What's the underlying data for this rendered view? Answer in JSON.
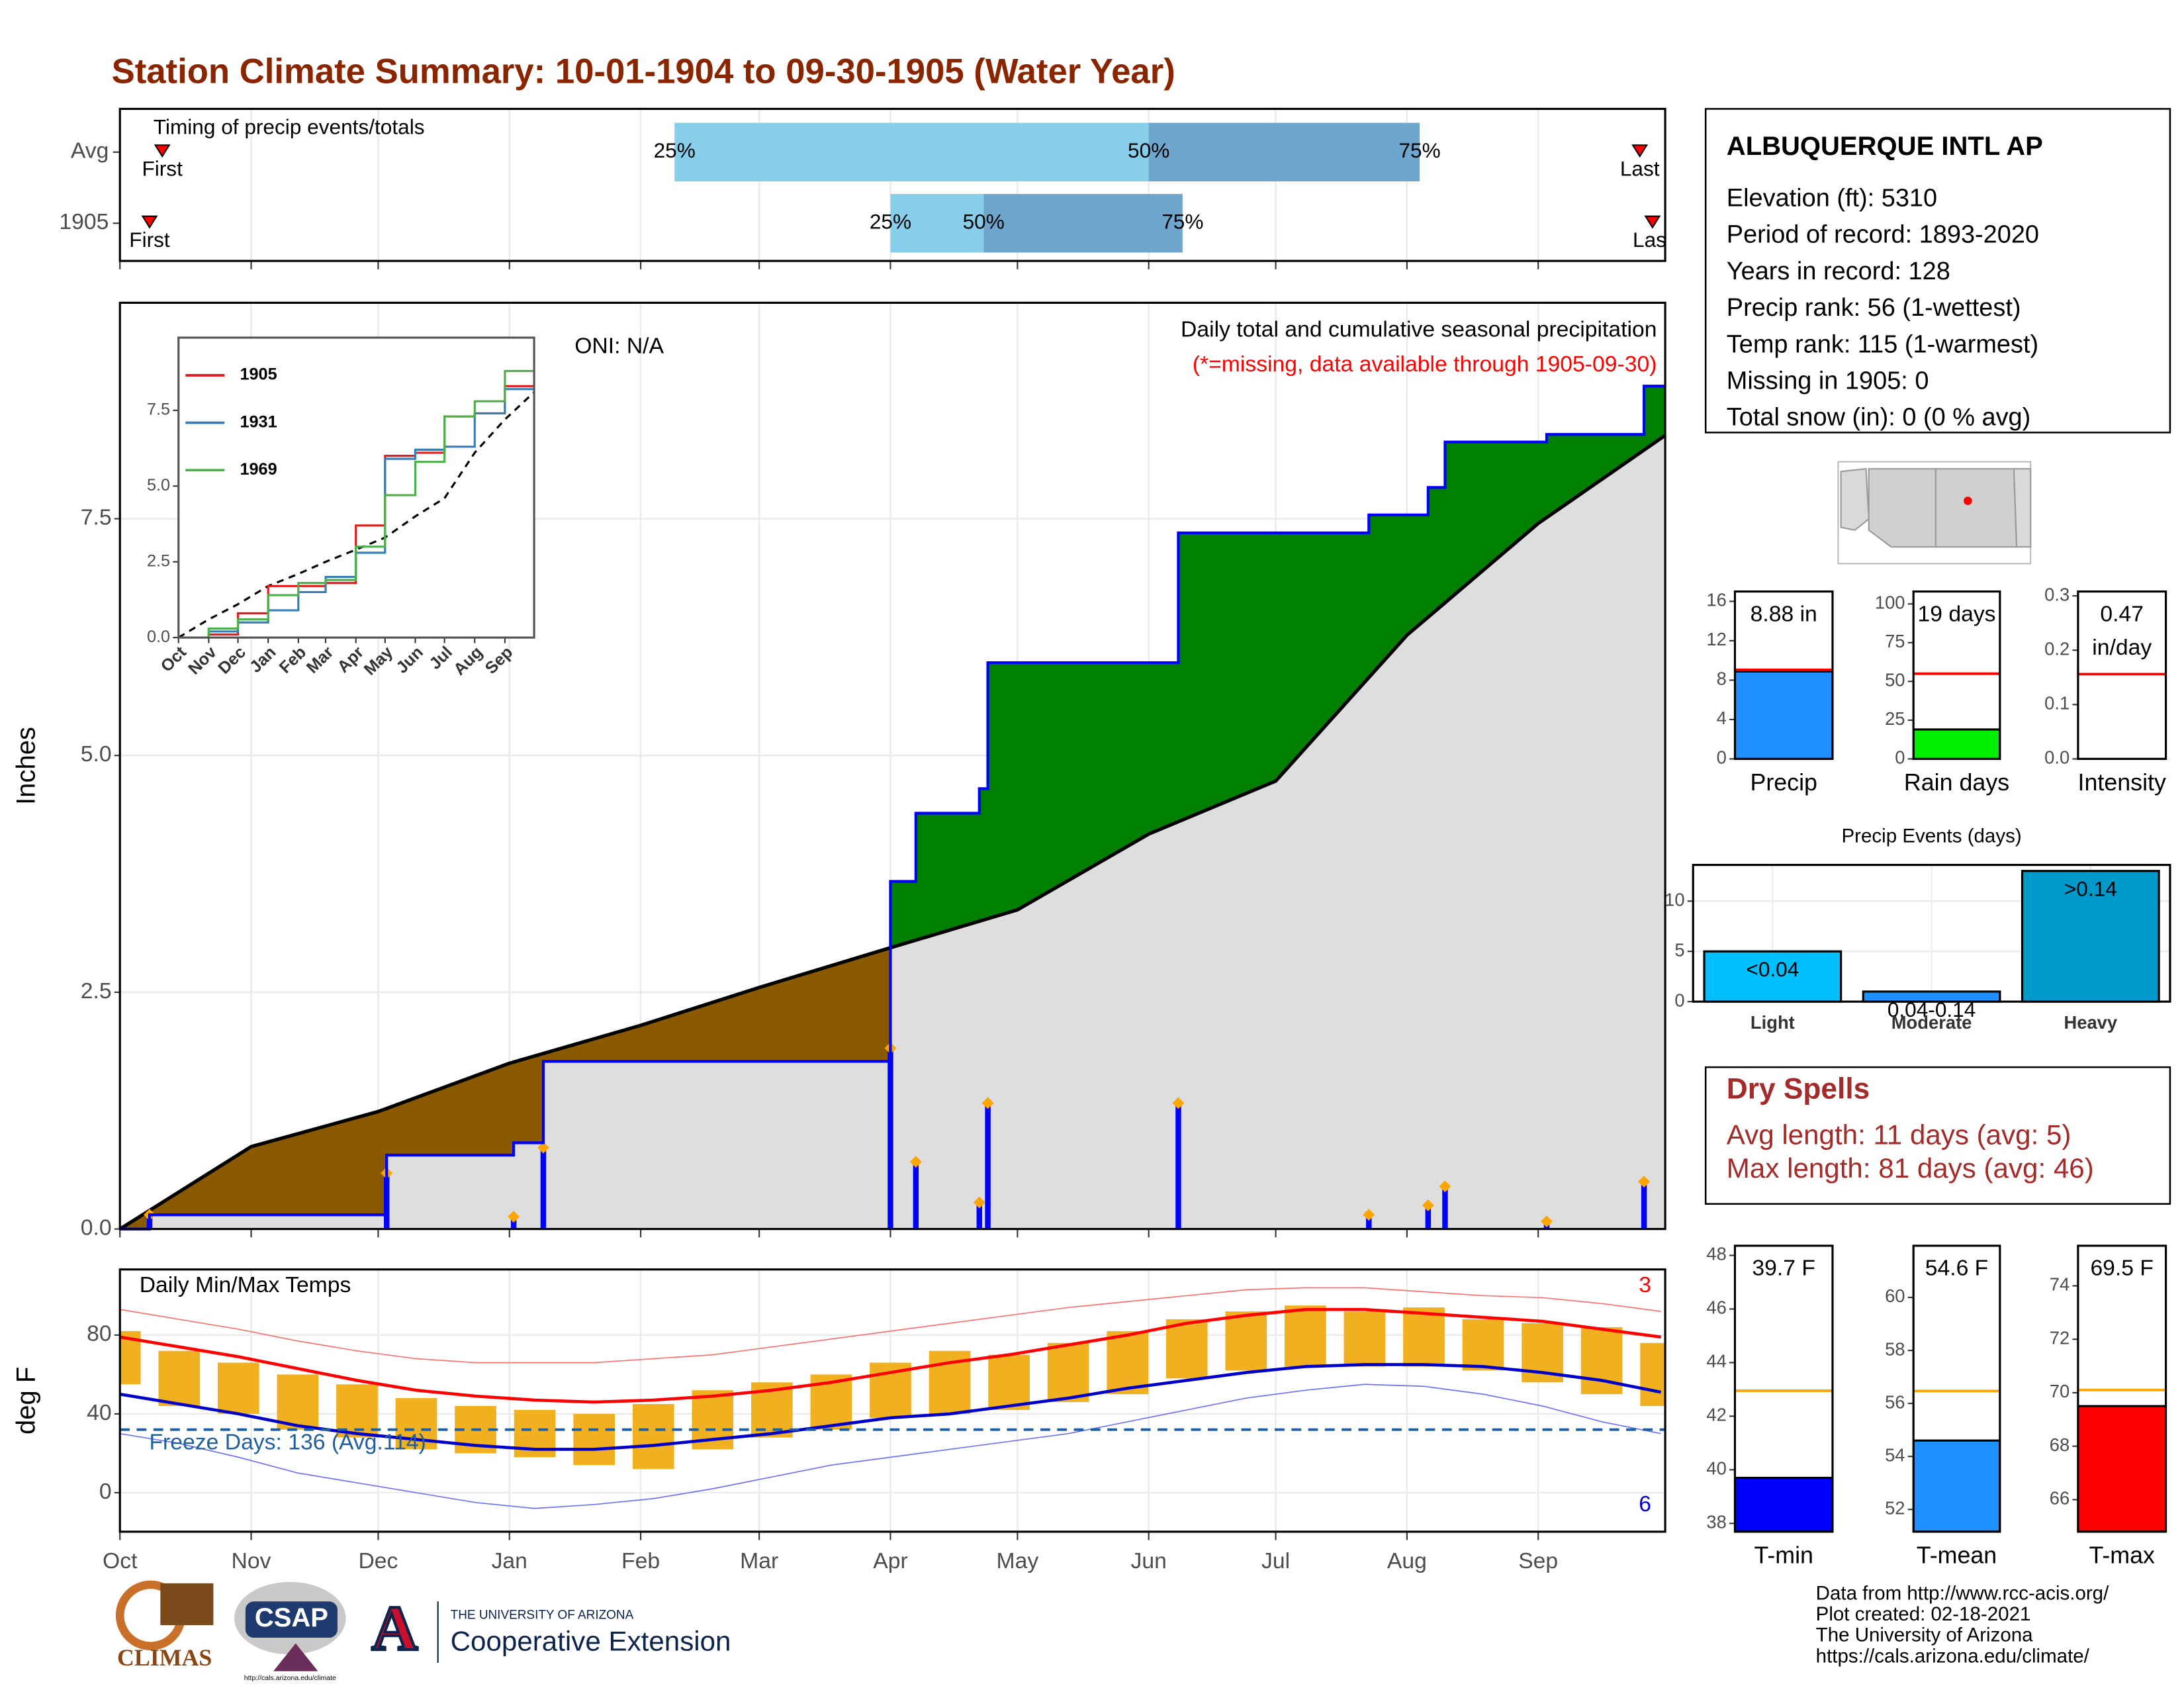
{
  "title": "Station Climate Summary: 10-01-1904 to 09-30-1905 (Water Year)",
  "station": {
    "name": "ALBUQUERQUE INTL AP",
    "lines": [
      "Elevation (ft): 5310",
      "Period of record: 1893-2020",
      "Years in record: 128",
      "Precip rank: 56 (1-wettest)",
      "Temp rank: 115 (1-warmest)",
      "Missing in 1905: 0",
      "Total snow (in): 0 (0 % avg)"
    ]
  },
  "dry_spells": {
    "title": "Dry Spells",
    "lines": [
      "Avg length: 11 days (avg: 5)",
      "Max length: 81 days (avg: 46)"
    ]
  },
  "footer": [
    "Data from http://www.rcc-acis.org/",
    "Plot created: 02-18-2021",
    "The University of Arizona",
    "https://cals.arizona.edu/climate/"
  ],
  "logos": {
    "climas": "CLIMAS",
    "csap": "CSAP",
    "csap_url": "http://cals.arizona.edu/climate",
    "ua_letter": "A",
    "ua_small": "THE UNIVERSITY OF ARIZONA",
    "ua_big": "Cooperative Extension"
  },
  "chart_data": [
    {
      "type": "timing",
      "label": "Timing of precip events/totals",
      "rows": [
        "Avg",
        "1905"
      ],
      "q25": [
        131,
        182
      ],
      "q50": [
        243,
        204
      ],
      "q75": [
        307,
        251
      ],
      "quantile_labels": [
        "25%",
        "50%",
        "75%"
      ],
      "first": [
        10,
        7
      ],
      "last": [
        359,
        362
      ],
      "first_label": "First",
      "last_label": "Last",
      "colors": [
        "#87ceeb",
        "#6ea6cd"
      ],
      "marker_color": "#ff0000"
    },
    {
      "type": "cumulative",
      "subtitle": "Daily total and cumulative seasonal precipitation",
      "note": "(*=missing, data available through 1905-09-30)",
      "oni": "ONI: N/A",
      "ylabel": "Inches",
      "ylim": [
        0,
        9.78
      ],
      "yticks": [
        {
          "value": 0,
          "label": "0.0"
        },
        2.5,
        {
          "value": 5,
          "label": "5.0"
        },
        7.5
      ],
      "cumulative": {
        "x": [
          0,
          7,
          63,
          93,
          100,
          182,
          188,
          203,
          205,
          250,
          295,
          309,
          313,
          337,
          360
        ],
        "values": [
          0,
          0.15,
          0.78,
          0.91,
          1.77,
          3.67,
          4.39,
          4.65,
          5.98,
          7.35,
          7.54,
          7.83,
          8.31,
          8.39,
          8.9
        ],
        "color": "#0000ff"
      },
      "average": {
        "x": [
          0,
          31,
          61,
          92,
          123,
          151,
          182,
          212,
          243,
          273,
          304,
          335,
          365
        ],
        "values": [
          0,
          0.87,
          1.24,
          1.75,
          2.15,
          2.55,
          2.97,
          3.37,
          4.17,
          4.73,
          6.27,
          7.45,
          8.38
        ],
        "color": "#000000"
      },
      "daily": {
        "x": [
          7,
          63,
          93,
          100,
          182,
          188,
          203,
          205,
          250,
          295,
          309,
          313,
          337,
          360
        ],
        "values": [
          0.15,
          0.59,
          0.13,
          0.86,
          1.91,
          0.71,
          0.28,
          1.33,
          1.33,
          0.15,
          0.25,
          0.45,
          0.08,
          0.5
        ],
        "color": "#0000ff",
        "marker_color": "#ffa500"
      },
      "above_color": "#008000",
      "below_color": "#8b5a00",
      "base_color": "#dedede"
    },
    {
      "type": "line",
      "ylim": [
        0,
        9.9
      ],
      "yticks": [
        {
          "value": 0,
          "label": "0.0"
        },
        2.5,
        {
          "value": 5,
          "label": "5.0"
        },
        7.5
      ],
      "x": [
        0,
        31,
        61,
        92,
        123,
        151,
        182,
        212,
        243,
        273,
        304,
        335,
        365
      ],
      "series": [
        {
          "name": "1905",
          "color": "#e41a1c",
          "values": [
            0,
            0.1,
            0.8,
            1.7,
            1.7,
            1.8,
            3.7,
            6.0,
            6.1,
            7.3,
            7.4,
            8.3,
            8.9
          ]
        },
        {
          "name": "1931",
          "color": "#377eb8",
          "values": [
            0,
            0.2,
            0.5,
            0.9,
            1.5,
            2.0,
            2.8,
            5.9,
            6.2,
            6.3,
            7.4,
            8.2,
            9.9
          ]
        },
        {
          "name": "1969",
          "color": "#4daf4a",
          "values": [
            0,
            0.3,
            0.6,
            1.4,
            1.8,
            1.9,
            3.0,
            4.7,
            5.8,
            7.3,
            7.8,
            8.8,
            9.1
          ]
        }
      ],
      "average": {
        "color": "#000000",
        "values": [
          0,
          0.6,
          1.1,
          1.7,
          2.1,
          2.5,
          2.9,
          3.3,
          4.0,
          4.6,
          6.1,
          7.2,
          8.1
        ]
      }
    },
    {
      "type": "band",
      "label": "Daily Min/Max Temps",
      "ylabel": "deg F",
      "freeze": 32,
      "freeze_label": "Freeze Days: 136 (Avg.114)",
      "record_high_count": "3",
      "record_low_count": "6",
      "xlim": [
        0,
        365
      ],
      "xticks": [
        {
          "value": 0,
          "label": "Oct"
        },
        {
          "value": 31,
          "label": "Nov"
        },
        {
          "value": 61,
          "label": "Dec"
        },
        {
          "value": 92,
          "label": "Jan"
        },
        {
          "value": 123,
          "label": "Feb"
        },
        {
          "value": 151,
          "label": "Mar"
        },
        {
          "value": 182,
          "label": "Apr"
        },
        {
          "value": 212,
          "label": "May"
        },
        {
          "value": 243,
          "label": "Jun"
        },
        {
          "value": 273,
          "label": "Jul"
        },
        {
          "value": 304,
          "label": "Aug"
        },
        {
          "value": 335,
          "label": "Sep"
        }
      ],
      "ylim": [
        -19.8,
        113.3
      ],
      "yticks": [
        0,
        40,
        80
      ],
      "x": [
        0,
        14,
        28,
        42,
        56,
        70,
        84,
        98,
        112,
        126,
        140,
        154,
        168,
        182,
        196,
        210,
        224,
        238,
        252,
        266,
        280,
        294,
        308,
        322,
        336,
        350,
        364
      ],
      "obs_max": [
        82,
        72,
        66,
        60,
        55,
        48,
        44,
        42,
        40,
        45,
        52,
        56,
        60,
        66,
        72,
        70,
        76,
        82,
        88,
        92,
        95,
        92,
        94,
        88,
        86,
        84,
        76
      ],
      "obs_min": [
        55,
        44,
        40,
        32,
        28,
        22,
        20,
        18,
        14,
        12,
        22,
        28,
        32,
        38,
        40,
        42,
        46,
        50,
        58,
        62,
        64,
        64,
        64,
        62,
        56,
        50,
        44
      ],
      "avg_max": [
        79,
        74,
        69,
        63,
        57,
        52,
        49,
        47,
        46,
        47,
        49,
        52,
        56,
        61,
        66,
        70,
        75,
        80,
        86,
        90,
        93,
        93,
        91,
        89,
        87,
        83,
        79
      ],
      "avg_min": [
        50,
        45,
        40,
        34,
        30,
        27,
        24,
        22,
        22,
        24,
        27,
        30,
        34,
        38,
        40,
        44,
        48,
        53,
        57,
        61,
        64,
        65,
        65,
        64,
        61,
        57,
        51
      ],
      "record_high": [
        93,
        88,
        83,
        77,
        72,
        68,
        66,
        66,
        66,
        68,
        70,
        74,
        78,
        82,
        86,
        90,
        94,
        97,
        100,
        103,
        104,
        104,
        102,
        100,
        99,
        96,
        92
      ],
      "record_low": [
        30,
        25,
        18,
        10,
        5,
        0,
        -5,
        -8,
        -6,
        -3,
        2,
        8,
        14,
        18,
        22,
        26,
        30,
        36,
        42,
        48,
        52,
        55,
        54,
        50,
        44,
        36,
        30
      ],
      "colors": {
        "obs": "#f0b020",
        "avg_max": "#ff0000",
        "avg_min": "#0000cc",
        "record_high": "#ff7070",
        "record_low": "#7070ff",
        "freeze": "#1f5f9f"
      }
    },
    {
      "type": "gauge",
      "categories": [
        "Precip"
      ],
      "values": [
        8.88
      ],
      "value_labels": [
        "8.88 in"
      ],
      "average": 9.05,
      "avg_color": "#ff0000",
      "color": "#1e90ff",
      "ylim": [
        0,
        17
      ],
      "yticks": [
        0,
        4,
        8,
        12,
        16
      ]
    },
    {
      "type": "gauge",
      "categories": [
        "Rain days"
      ],
      "values": [
        19
      ],
      "value_labels": [
        "19 days"
      ],
      "average": 55,
      "avg_color": "#ff0000",
      "color": "#00ee00",
      "ylim": [
        0,
        108
      ],
      "yticks": [
        0,
        25,
        50,
        75,
        100
      ]
    },
    {
      "type": "gauge",
      "categories": [
        "Intensity"
      ],
      "values": [
        0.47
      ],
      "value_labels": [
        "0.47"
      ],
      "unit": "in/day",
      "average": 0.156,
      "avg_color": "#ff0000",
      "color": "#ffffff",
      "ylim": [
        0,
        0.308
      ],
      "yticks": [
        {
          "value": 0,
          "label": "0.0"
        },
        0.1,
        0.2,
        0.3
      ]
    },
    {
      "type": "bar",
      "title": "Precip Events (days)",
      "categories": [
        "Light",
        "Moderate",
        "Heavy"
      ],
      "values": [
        5,
        1,
        13
      ],
      "value_labels": [
        "<0.04",
        "0.04-0.14",
        ">0.14"
      ],
      "colors": [
        "#00bfff",
        "#1e90ff",
        "#0099cc"
      ],
      "ylim": [
        0,
        13.6
      ],
      "yticks": [
        0,
        5,
        10
      ],
      "grid": true
    },
    {
      "type": "gauge",
      "categories": [
        "T-min"
      ],
      "values": [
        39.7
      ],
      "value_labels": [
        "39.7 F"
      ],
      "average": 42.95,
      "avg_color": "#ffa500",
      "color": "#0000ff",
      "ylim": [
        37.69,
        48.36
      ],
      "yticks": [
        38,
        40,
        42,
        44,
        46,
        48
      ]
    },
    {
      "type": "gauge",
      "categories": [
        "T-mean"
      ],
      "values": [
        54.6
      ],
      "value_labels": [
        "54.6 F"
      ],
      "average": 56.47,
      "avg_color": "#ffa500",
      "color": "#1e90ff",
      "ylim": [
        51.16,
        61.95
      ],
      "yticks": [
        52,
        54,
        56,
        58,
        60
      ]
    },
    {
      "type": "gauge",
      "categories": [
        "T-max"
      ],
      "values": [
        69.5
      ],
      "value_labels": [
        "69.5 F"
      ],
      "average": 70.1,
      "avg_color": "#ffa500",
      "color": "#ff0000",
      "ylim": [
        64.8,
        75.5
      ],
      "yticks": [
        66,
        68,
        70,
        72,
        74
      ]
    }
  ]
}
